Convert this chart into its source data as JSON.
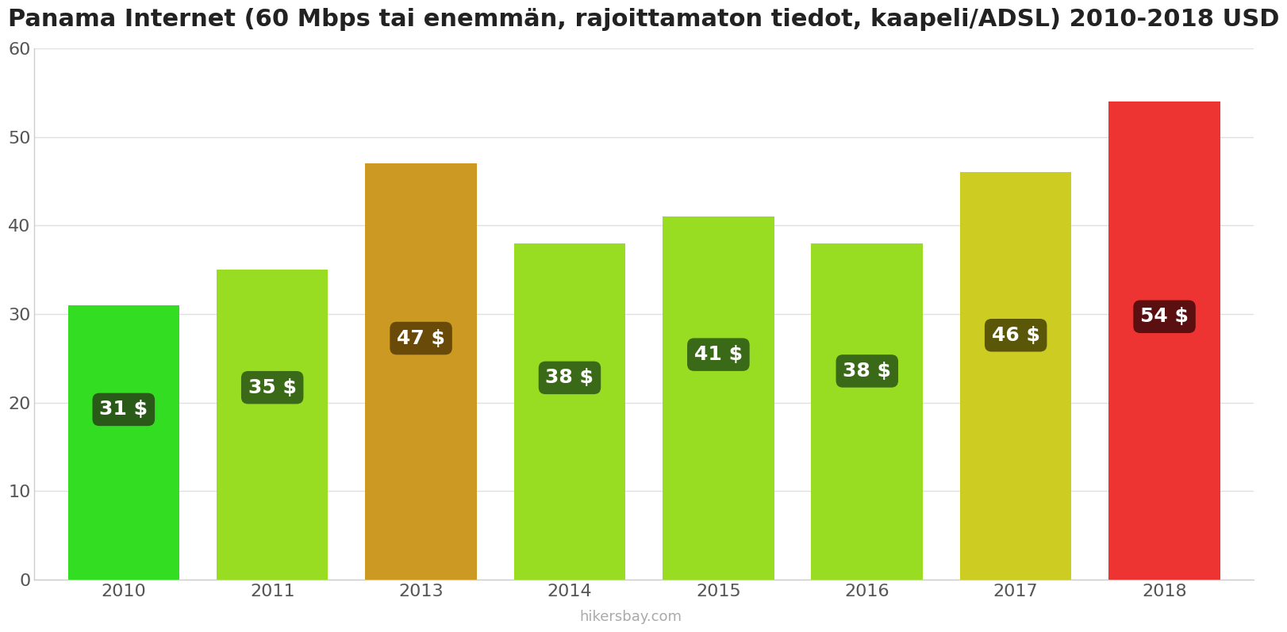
{
  "title": "Panama Internet (60 Mbps tai enemmän, rajoittamaton tiedot, kaapeli/ADSL) 2010-2018 USD",
  "years": [
    2010,
    2011,
    2013,
    2014,
    2015,
    2016,
    2017,
    2018
  ],
  "values": [
    31,
    35,
    47,
    38,
    41,
    38,
    46,
    54
  ],
  "bar_colors": [
    "#33dd22",
    "#99dd22",
    "#cc9922",
    "#99dd22",
    "#99dd22",
    "#99dd22",
    "#cccc22",
    "#ee3333"
  ],
  "label_bg_colors": [
    "#2a5a18",
    "#3a6a18",
    "#6a4a08",
    "#3a6a18",
    "#3a6a18",
    "#3a6a18",
    "#5a5808",
    "#5a1010"
  ],
  "label_y_fractions": [
    0.62,
    0.62,
    0.58,
    0.6,
    0.62,
    0.62,
    0.6,
    0.55
  ],
  "ylim": [
    0,
    60
  ],
  "yticks": [
    0,
    10,
    20,
    30,
    40,
    50,
    60
  ],
  "watermark": "hikersbay.com",
  "title_fontsize": 22,
  "tick_fontsize": 16,
  "label_fontsize": 18,
  "background_color": "#ffffff",
  "bar_width": 0.75
}
